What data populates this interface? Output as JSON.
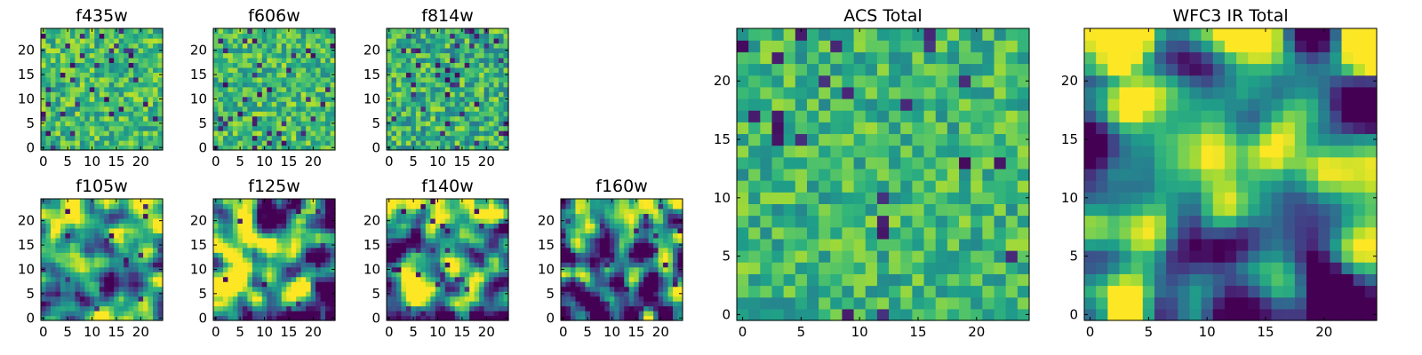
{
  "chart_data": [
    {
      "type": "heatmap",
      "title": "f435w",
      "grid_size": 25,
      "xticks": [
        0,
        5,
        10,
        15,
        20
      ],
      "yticks": [
        0,
        5,
        10,
        15,
        20
      ],
      "xlim": [
        0,
        24
      ],
      "ylim": [
        0,
        24
      ],
      "colormap": "viridis",
      "value_range": [
        0,
        1
      ],
      "seed": 11,
      "smooth": 0,
      "gradient": "none",
      "noise": 0.45,
      "base": 0.68,
      "holes": 0.06
    },
    {
      "type": "heatmap",
      "title": "f606w",
      "grid_size": 25,
      "xticks": [
        0,
        5,
        10,
        15,
        20
      ],
      "yticks": [
        0,
        5,
        10,
        15,
        20
      ],
      "xlim": [
        0,
        24
      ],
      "ylim": [
        0,
        24
      ],
      "colormap": "viridis",
      "value_range": [
        0,
        1
      ],
      "seed": 23,
      "smooth": 0,
      "gradient": "none",
      "noise": 0.45,
      "base": 0.68,
      "holes": 0.05
    },
    {
      "type": "heatmap",
      "title": "f814w",
      "grid_size": 25,
      "xticks": [
        0,
        5,
        10,
        15,
        20
      ],
      "yticks": [
        0,
        5,
        10,
        15,
        20
      ],
      "xlim": [
        0,
        24
      ],
      "ylim": [
        0,
        24
      ],
      "colormap": "viridis",
      "value_range": [
        0,
        1
      ],
      "seed": 37,
      "smooth": 0,
      "gradient": "none",
      "noise": 0.5,
      "base": 0.64,
      "holes": 0.07
    },
    {
      "type": "heatmap",
      "title": "f105w",
      "grid_size": 25,
      "xticks": [
        0,
        5,
        10,
        15,
        20
      ],
      "yticks": [
        0,
        5,
        10,
        15,
        20
      ],
      "xlim": [
        0,
        24
      ],
      "ylim": [
        0,
        24
      ],
      "colormap": "viridis",
      "value_range": [
        0,
        1
      ],
      "seed": 41,
      "smooth": 2,
      "gradient": "topleft",
      "noise": 0.9,
      "base": 0.58,
      "holes": 0.02
    },
    {
      "type": "heatmap",
      "title": "f125w",
      "grid_size": 25,
      "xticks": [
        0,
        5,
        10,
        15,
        20
      ],
      "yticks": [
        0,
        5,
        10,
        15,
        20
      ],
      "xlim": [
        0,
        24
      ],
      "ylim": [
        0,
        24
      ],
      "colormap": "viridis",
      "value_range": [
        0,
        1
      ],
      "seed": 53,
      "smooth": 2,
      "gradient": "none",
      "noise": 1.0,
      "base": 0.6,
      "holes": 0.03
    },
    {
      "type": "heatmap",
      "title": "f140w",
      "grid_size": 25,
      "xticks": [
        0,
        5,
        10,
        15,
        20
      ],
      "yticks": [
        0,
        5,
        10,
        15,
        20
      ],
      "xlim": [
        0,
        24
      ],
      "ylim": [
        0,
        24
      ],
      "colormap": "viridis",
      "value_range": [
        0,
        1
      ],
      "seed": 67,
      "smooth": 2,
      "gradient": "topleft",
      "noise": 1.0,
      "base": 0.6,
      "holes": 0.03
    },
    {
      "type": "heatmap",
      "title": "f160w",
      "grid_size": 25,
      "xticks": [
        0,
        5,
        10,
        15,
        20
      ],
      "yticks": [
        0,
        5,
        10,
        15,
        20
      ],
      "xlim": [
        0,
        24
      ],
      "ylim": [
        0,
        24
      ],
      "colormap": "viridis",
      "value_range": [
        0,
        1
      ],
      "seed": 79,
      "smooth": 2,
      "gradient": "topleft",
      "noise": 1.1,
      "base": 0.45,
      "holes": 0.05
    },
    {
      "type": "heatmap",
      "title": "ACS Total",
      "grid_size": 25,
      "xticks": [
        0,
        5,
        10,
        15,
        20
      ],
      "yticks": [
        0,
        5,
        10,
        15,
        20
      ],
      "xlim": [
        0,
        24
      ],
      "ylim": [
        0,
        24
      ],
      "colormap": "viridis",
      "value_range": [
        0,
        1
      ],
      "seed": 97,
      "smooth": 0,
      "gradient": "none",
      "noise": 0.4,
      "base": 0.66,
      "holes": 0.04
    },
    {
      "type": "heatmap",
      "title": "WFC3 IR Total",
      "grid_size": 25,
      "xticks": [
        0,
        5,
        10,
        15,
        20
      ],
      "yticks": [
        0,
        5,
        10,
        15,
        20
      ],
      "xlim": [
        0,
        24
      ],
      "ylim": [
        0,
        24
      ],
      "colormap": "viridis",
      "value_range": [
        0,
        1
      ],
      "seed": 113,
      "smooth": 3,
      "gradient": "topleft-strong",
      "noise": 0.7,
      "base": 0.52,
      "holes": 0.0
    }
  ]
}
